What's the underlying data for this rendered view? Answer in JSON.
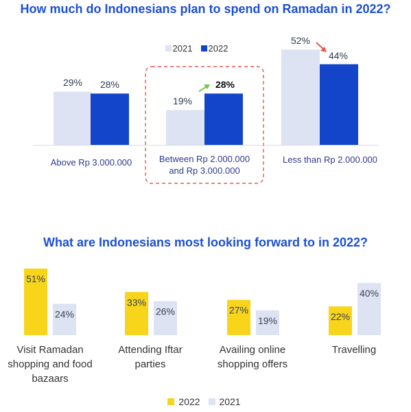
{
  "colors": {
    "primary_2022": "#1245c9",
    "light_2021": "#dde3f2",
    "yellow_2022": "#f8d41b",
    "title": "#1b4fd6",
    "highlight_box": "#e2574c",
    "up_arrow": "#7cc14a",
    "down_arrow": "#e2574c"
  },
  "chart_data": [
    {
      "type": "bar",
      "title": "How much do Indonesians plan to spend on Ramadan in 2022?",
      "legend": {
        "placement": "top-center",
        "entries": [
          "2021",
          "2022"
        ]
      },
      "categories": [
        "Above Rp 3.000.000",
        "Between Rp 2.000.000 and Rp 3.000.000",
        "Less than Rp 2.000.000"
      ],
      "series": [
        {
          "name": "2021",
          "values": [
            29,
            19,
            52
          ],
          "labels": [
            "29%",
            "19%",
            "52%"
          ]
        },
        {
          "name": "2022",
          "values": [
            28,
            28,
            44
          ],
          "labels": [
            "28%",
            "28%",
            "44%"
          ]
        }
      ],
      "highlighted_category": "Between Rp 2.000.000 and Rp 3.000.000",
      "ylim": [
        0,
        55
      ],
      "grid": false
    },
    {
      "type": "bar",
      "title": "What are Indonesians most looking forward to in 2022?",
      "legend": {
        "placement": "bottom-center",
        "entries": [
          "2022",
          "2021"
        ]
      },
      "categories": [
        "Visit Ramadan shopping and food bazaars",
        "Attending Iftar parties",
        "Availing online shopping offers",
        "Travelling"
      ],
      "series": [
        {
          "name": "2022",
          "values": [
            51,
            33,
            27,
            22
          ],
          "labels": [
            "51%",
            "33%",
            "27%",
            "22%"
          ]
        },
        {
          "name": "2021",
          "values": [
            24,
            26,
            19,
            40
          ],
          "labels": [
            "24%",
            "26%",
            "19%",
            "40%"
          ]
        }
      ],
      "ylim": [
        0,
        55
      ],
      "grid": false
    }
  ]
}
